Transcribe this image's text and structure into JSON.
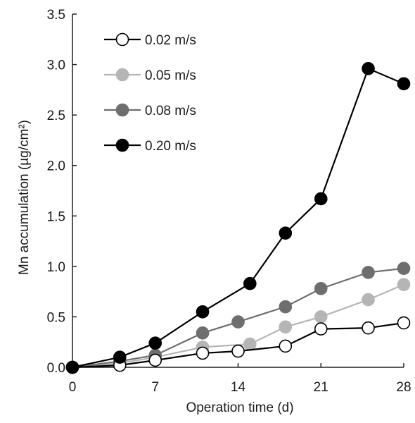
{
  "chart_data": {
    "type": "line",
    "title": "",
    "xlabel": "Operation time (d)",
    "ylabel": "Mn accumulation (µg/cm²)",
    "xlim": [
      0,
      28
    ],
    "ylim": [
      0,
      3.5
    ],
    "xticks": [
      0,
      7,
      14,
      21,
      28
    ],
    "yticks": [
      0.0,
      0.5,
      1.0,
      1.5,
      2.0,
      2.5,
      3.0,
      3.5
    ],
    "xtick_labels": [
      "0",
      "7",
      "14",
      "21",
      "28"
    ],
    "ytick_labels": [
      "0.0",
      "0.5",
      "1.0",
      "1.5",
      "2.0",
      "2.5",
      "3.0",
      "3.5"
    ],
    "grid": false,
    "legend_position": "top-left",
    "series": [
      {
        "name": "0.02 m/s",
        "marker_fill": "#ffffff",
        "line_color": "#000000",
        "marker_edge": "#000000",
        "x": [
          0,
          4,
          7,
          11,
          14,
          18,
          21,
          25,
          28
        ],
        "y": [
          0.0,
          0.02,
          0.07,
          0.14,
          0.16,
          0.21,
          0.38,
          0.39,
          0.44
        ]
      },
      {
        "name": "0.05 m/s",
        "marker_fill": "#b5b5b5",
        "line_color": "#b5b5b5",
        "marker_edge": "#b5b5b5",
        "x": [
          0,
          4,
          7,
          11,
          15,
          18,
          21,
          25,
          28
        ],
        "y": [
          0.0,
          0.04,
          0.1,
          0.2,
          0.23,
          0.4,
          0.5,
          0.67,
          0.82
        ]
      },
      {
        "name": "0.08 m/s",
        "marker_fill": "#6e6e6e",
        "line_color": "#6e6e6e",
        "marker_edge": "#6e6e6e",
        "x": [
          0,
          4,
          7,
          11,
          14,
          18,
          21,
          25,
          28
        ],
        "y": [
          0.0,
          0.06,
          0.12,
          0.34,
          0.45,
          0.6,
          0.78,
          0.94,
          0.98
        ]
      },
      {
        "name": "0.20 m/s",
        "marker_fill": "#000000",
        "line_color": "#000000",
        "marker_edge": "#000000",
        "x": [
          0,
          4,
          7,
          11,
          15,
          18,
          21,
          25,
          28
        ],
        "y": [
          0.0,
          0.1,
          0.24,
          0.55,
          0.83,
          1.33,
          1.67,
          2.96,
          2.81
        ]
      }
    ]
  }
}
